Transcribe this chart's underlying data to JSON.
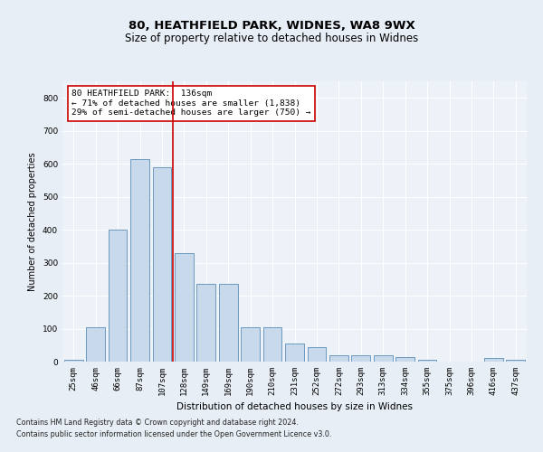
{
  "title1": "80, HEATHFIELD PARK, WIDNES, WA8 9WX",
  "title2": "Size of property relative to detached houses in Widnes",
  "xlabel": "Distribution of detached houses by size in Widnes",
  "ylabel": "Number of detached properties",
  "categories": [
    "25sqm",
    "46sqm",
    "66sqm",
    "87sqm",
    "107sqm",
    "128sqm",
    "149sqm",
    "169sqm",
    "190sqm",
    "210sqm",
    "231sqm",
    "252sqm",
    "272sqm",
    "293sqm",
    "313sqm",
    "334sqm",
    "355sqm",
    "375sqm",
    "396sqm",
    "416sqm",
    "437sqm"
  ],
  "values": [
    5,
    103,
    400,
    613,
    590,
    330,
    235,
    235,
    105,
    105,
    55,
    45,
    20,
    20,
    20,
    15,
    5,
    0,
    0,
    10,
    5
  ],
  "bar_color": "#c9d9ec",
  "bar_edge_color": "#5b8db8",
  "vline_color": "#cc0000",
  "vline_pos": 4.5,
  "annotation_text": "80 HEATHFIELD PARK:  136sqm\n← 71% of detached houses are smaller (1,838)\n29% of semi-detached houses are larger (750) →",
  "annotation_box_color": "#ffffff",
  "annotation_box_edge_color": "#cc0000",
  "footer1": "Contains HM Land Registry data © Crown copyright and database right 2024.",
  "footer2": "Contains public sector information licensed under the Open Government Licence v3.0.",
  "bg_color": "#e8eef5",
  "plot_bg_color": "#edf2f8",
  "ylim": [
    0,
    850
  ],
  "yticks": [
    0,
    100,
    200,
    300,
    400,
    500,
    600,
    700,
    800
  ],
  "title1_fontsize": 9.5,
  "title2_fontsize": 8.5,
  "xlabel_fontsize": 7.5,
  "ylabel_fontsize": 7,
  "tick_fontsize": 6.5,
  "annotation_fontsize": 6.8,
  "footer_fontsize": 5.8
}
